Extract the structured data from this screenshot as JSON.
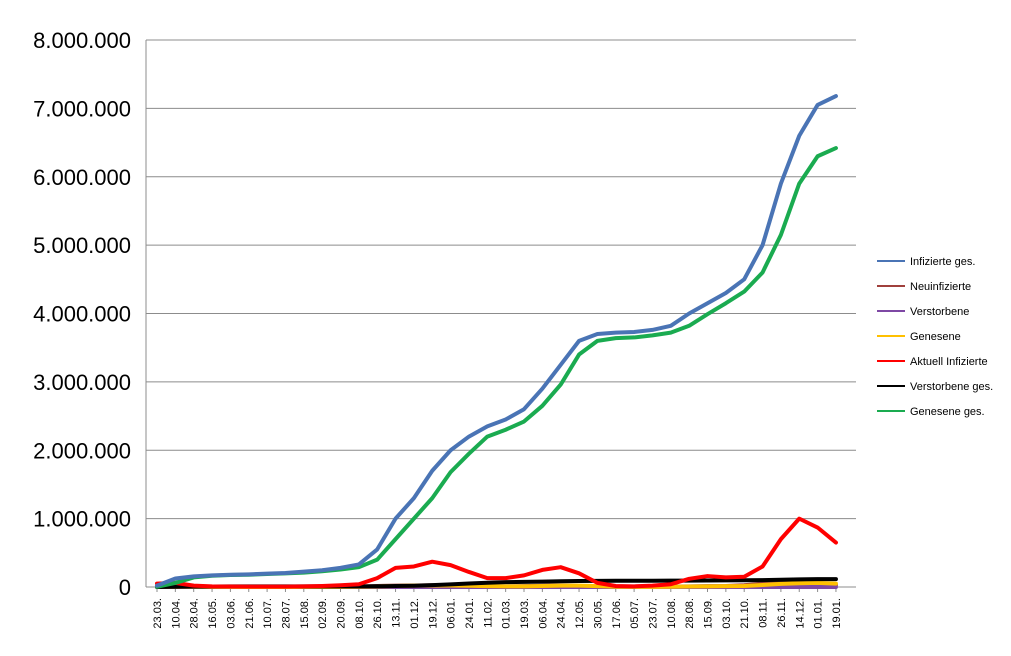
{
  "chart_data": {
    "type": "line",
    "title": "",
    "xlabel": "",
    "ylabel": "",
    "ylim": [
      0,
      8000000
    ],
    "y_ticks": [
      "0",
      "1.000.000",
      "2.000.000",
      "3.000.000",
      "4.000.000",
      "5.000.000",
      "6.000.000",
      "7.000.000",
      "8.000.000"
    ],
    "y_tick_values": [
      0,
      1000000,
      2000000,
      3000000,
      4000000,
      5000000,
      6000000,
      7000000,
      8000000
    ],
    "x_ticks": [
      "23.03.",
      "10.04.",
      "28.04.",
      "16.05.",
      "03.06.",
      "21.06.",
      "10.07.",
      "28.07.",
      "15.08.",
      "02.09.",
      "20.09.",
      "08.10.",
      "26.10.",
      "13.11.",
      "01.12.",
      "19.12.",
      "06.01.",
      "24.01.",
      "11.02.",
      "01.03.",
      "19.03.",
      "06.04.",
      "24.04.",
      "12.05.",
      "30.05.",
      "17.06.",
      "05.07.",
      "23.07.",
      "10.08.",
      "28.08.",
      "15.09.",
      "03.10.",
      "21.10.",
      "08.11.",
      "26.11.",
      "14.12.",
      "01.01.",
      "19.01."
    ],
    "grid": true,
    "legend_position": "right",
    "series": [
      {
        "name": "Infizierte ges.",
        "color": "#4a74b5",
        "x": [
          0,
          1,
          2,
          3,
          4,
          5,
          6,
          7,
          8,
          9,
          10,
          11,
          12,
          13,
          14,
          15,
          16,
          17,
          18,
          19,
          20,
          21,
          22,
          23,
          24,
          25,
          26,
          27,
          28,
          29,
          30,
          31,
          32,
          33,
          34,
          35,
          36,
          37
        ],
        "values": [
          20000,
          125000,
          155000,
          170000,
          180000,
          185000,
          195000,
          205000,
          225000,
          245000,
          280000,
          330000,
          550000,
          1000000,
          1300000,
          1700000,
          2000000,
          2200000,
          2350000,
          2450000,
          2600000,
          2900000,
          3250000,
          3600000,
          3700000,
          3720000,
          3730000,
          3760000,
          3820000,
          4000000,
          4150000,
          4300000,
          4500000,
          5000000,
          5900000,
          6600000,
          7050000,
          7180000
        ]
      },
      {
        "name": "Neuinfizierte",
        "color": "#a0403c",
        "x": [
          0,
          1,
          2,
          3,
          4,
          5,
          6,
          7,
          8,
          9,
          10,
          11,
          12,
          13,
          14,
          15,
          16,
          17,
          18,
          19,
          20,
          21,
          22,
          23,
          24,
          25,
          26,
          27,
          28,
          29,
          30,
          31,
          32,
          33,
          34,
          35,
          36,
          37
        ],
        "values": [
          4000,
          5000,
          2000,
          1000,
          500,
          500,
          500,
          800,
          1500,
          2000,
          3000,
          5000,
          15000,
          20000,
          22000,
          25000,
          20000,
          15000,
          10000,
          9000,
          12000,
          18000,
          22000,
          15000,
          8000,
          3000,
          2000,
          3000,
          5000,
          10000,
          12000,
          15000,
          25000,
          50000,
          65000,
          60000,
          40000,
          30000
        ]
      },
      {
        "name": "Verstorbene",
        "color": "#7e48a4",
        "x": [
          0,
          1,
          2,
          3,
          4,
          5,
          6,
          7,
          8,
          9,
          10,
          11,
          12,
          13,
          14,
          15,
          16,
          17,
          18,
          19,
          20,
          21,
          22,
          23,
          24,
          25,
          26,
          27,
          28,
          29,
          30,
          31,
          32,
          33,
          34,
          35,
          36,
          37
        ],
        "values": [
          200,
          300,
          200,
          100,
          50,
          20,
          10,
          10,
          10,
          10,
          20,
          50,
          200,
          400,
          600,
          800,
          900,
          700,
          400,
          300,
          250,
          300,
          300,
          200,
          100,
          50,
          20,
          20,
          30,
          50,
          60,
          80,
          150,
          250,
          300,
          350,
          300,
          200
        ]
      },
      {
        "name": "Genesene",
        "color": "#ffc000",
        "x": [
          0,
          1,
          2,
          3,
          4,
          5,
          6,
          7,
          8,
          9,
          10,
          11,
          12,
          13,
          14,
          15,
          16,
          17,
          18,
          19,
          20,
          21,
          22,
          23,
          24,
          25,
          26,
          27,
          28,
          29,
          30,
          31,
          32,
          33,
          34,
          35,
          36,
          37
        ],
        "values": [
          1000,
          4000,
          4000,
          2000,
          1000,
          500,
          500,
          500,
          1000,
          1500,
          2000,
          3000,
          8000,
          15000,
          20000,
          22000,
          22000,
          18000,
          12000,
          10000,
          10000,
          15000,
          20000,
          20000,
          12000,
          4000,
          2000,
          2500,
          4000,
          8000,
          10000,
          12000,
          15000,
          30000,
          45000,
          55000,
          60000,
          50000
        ]
      },
      {
        "name": "Aktuell Infizierte",
        "color": "#ff0000",
        "x": [
          0,
          1,
          2,
          3,
          4,
          5,
          6,
          7,
          8,
          9,
          10,
          11,
          12,
          13,
          14,
          15,
          16,
          17,
          18,
          19,
          20,
          21,
          22,
          23,
          24,
          25,
          26,
          27,
          28,
          29,
          30,
          31,
          32,
          33,
          34,
          35,
          36,
          37
        ],
        "values": [
          50000,
          60000,
          20000,
          10000,
          8000,
          6000,
          5000,
          6000,
          10000,
          15000,
          25000,
          40000,
          130000,
          280000,
          300000,
          370000,
          320000,
          220000,
          130000,
          130000,
          170000,
          250000,
          290000,
          200000,
          60000,
          15000,
          10000,
          20000,
          40000,
          120000,
          160000,
          140000,
          150000,
          300000,
          700000,
          1000000,
          870000,
          650000
        ]
      },
      {
        "name": "Verstorbene ges.",
        "color": "#000000",
        "x": [
          0,
          1,
          2,
          3,
          4,
          5,
          6,
          7,
          8,
          9,
          10,
          11,
          12,
          13,
          14,
          15,
          16,
          17,
          18,
          19,
          20,
          21,
          22,
          23,
          24,
          25,
          26,
          27,
          28,
          29,
          30,
          31,
          32,
          33,
          34,
          35,
          36,
          37
        ],
        "values": [
          500,
          4000,
          6500,
          8000,
          8600,
          8900,
          9000,
          9100,
          9200,
          9300,
          9500,
          9800,
          11000,
          14000,
          18000,
          27000,
          38000,
          52000,
          63000,
          71000,
          75000,
          79000,
          84000,
          88000,
          90000,
          91000,
          91500,
          92000,
          92500,
          93500,
          94500,
          96000,
          98000,
          101000,
          106000,
          112000,
          115000,
          116000
        ]
      },
      {
        "name": "Genesene ges.",
        "color": "#1aab50",
        "x": [
          0,
          1,
          2,
          3,
          4,
          5,
          6,
          7,
          8,
          9,
          10,
          11,
          12,
          13,
          14,
          15,
          16,
          17,
          18,
          19,
          20,
          21,
          22,
          23,
          24,
          25,
          26,
          27,
          28,
          29,
          30,
          31,
          32,
          33,
          34,
          35,
          36,
          37
        ],
        "values": [
          3000,
          60000,
          140000,
          165000,
          175000,
          180000,
          190000,
          200000,
          210000,
          230000,
          255000,
          290000,
          400000,
          700000,
          1000000,
          1300000,
          1680000,
          1950000,
          2200000,
          2300000,
          2420000,
          2650000,
          2960000,
          3400000,
          3600000,
          3640000,
          3650000,
          3680000,
          3720000,
          3820000,
          3990000,
          4150000,
          4320000,
          4600000,
          5150000,
          5900000,
          6300000,
          6420000
        ]
      }
    ]
  }
}
